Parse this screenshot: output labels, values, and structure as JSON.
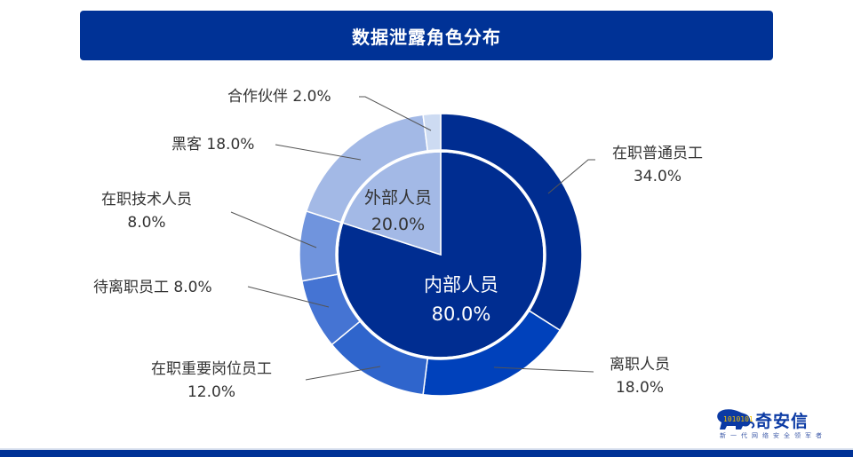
{
  "header": {
    "title": "数据泄露角色分布"
  },
  "brand": {
    "name": "奇安信",
    "slogan": "新一代网络安全领军者",
    "bits": "1010101"
  },
  "colors": {
    "title_bg": "#003296",
    "footer_bar": "#003296",
    "leader_line": "#555555"
  },
  "chart_data": {
    "type": "pie",
    "subtype": "nested-donut",
    "title": "数据泄露角色分布",
    "inner": {
      "categories": [
        "内部人员",
        "外部人员"
      ],
      "values": [
        80.0,
        20.0
      ],
      "colors": [
        "#002d91",
        "#a3b9e6"
      ]
    },
    "outer": {
      "categories": [
        "在职普通员工",
        "离职人员",
        "在职重要岗位员工",
        "待离职员工",
        "在职技术人员",
        "黑客",
        "合作伙伴"
      ],
      "values": [
        34.0,
        18.0,
        12.0,
        8.0,
        8.0,
        18.0,
        2.0
      ],
      "colors": [
        "#002d91",
        "#0041bb",
        "#2f65cc",
        "#4574d3",
        "#7094dd",
        "#a3b9e6",
        "#cddbf2"
      ],
      "parent": [
        "内部人员",
        "内部人员",
        "内部人员",
        "内部人员",
        "内部人员",
        "外部人员",
        "外部人员"
      ]
    },
    "value_format": "0.0%",
    "start_angle": "12 o'clock, clockwise"
  },
  "labels": {
    "inner": [
      {
        "name": "内部人员",
        "pct": "80.0%"
      },
      {
        "name": "外部人员",
        "pct": "20.0%"
      }
    ],
    "outer": [
      {
        "name": "在职普通员工",
        "pct": "34.0%"
      },
      {
        "name": "离职人员",
        "pct": "18.0%"
      },
      {
        "name": "在职重要岗位员工",
        "pct": "12.0%"
      },
      {
        "name": "待离职员工",
        "pct": "8.0%"
      },
      {
        "name": "在职技术人员",
        "pct": "8.0%"
      },
      {
        "name": "黑客",
        "pct": "18.0%"
      },
      {
        "name": "合作伙伴",
        "pct": "2.0%"
      }
    ]
  }
}
